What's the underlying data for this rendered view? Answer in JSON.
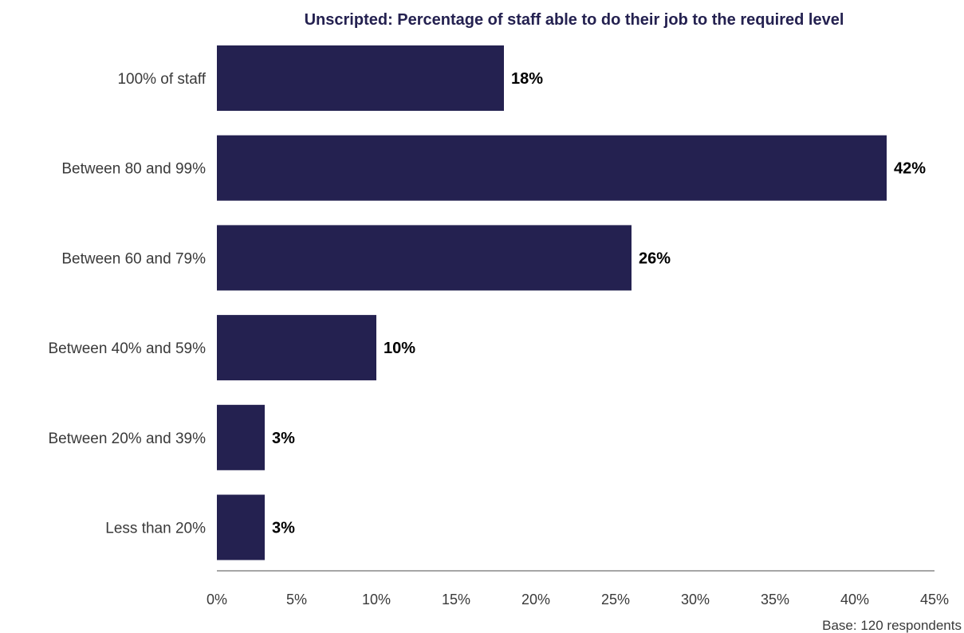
{
  "chart_data": {
    "type": "bar",
    "orientation": "horizontal",
    "title": "Unscripted: Percentage of staff able to do their job to the required level",
    "categories": [
      "100% of staff",
      "Between 80 and 99%",
      "Between 60 and 79%",
      "Between 40% and 59%",
      "Between 20% and 39%",
      "Less than 20%"
    ],
    "values": [
      18,
      42,
      26,
      10,
      3,
      3
    ],
    "value_labels": [
      "18%",
      "42%",
      "26%",
      "10%",
      "3%",
      "3%"
    ],
    "xlim": [
      0,
      45
    ],
    "xticks": [
      0,
      5,
      10,
      15,
      20,
      25,
      30,
      35,
      40,
      45
    ],
    "xtick_labels": [
      "0%",
      "5%",
      "10%",
      "15%",
      "20%",
      "25%",
      "30%",
      "35%",
      "40%",
      "45%"
    ],
    "xlabel": "",
    "ylabel": "",
    "grid": false,
    "legend": "none",
    "footnote": "Base: 120 respondents",
    "colors": {
      "bar": "#242150",
      "title": "#242150",
      "axis": "#a6a6a6"
    }
  }
}
